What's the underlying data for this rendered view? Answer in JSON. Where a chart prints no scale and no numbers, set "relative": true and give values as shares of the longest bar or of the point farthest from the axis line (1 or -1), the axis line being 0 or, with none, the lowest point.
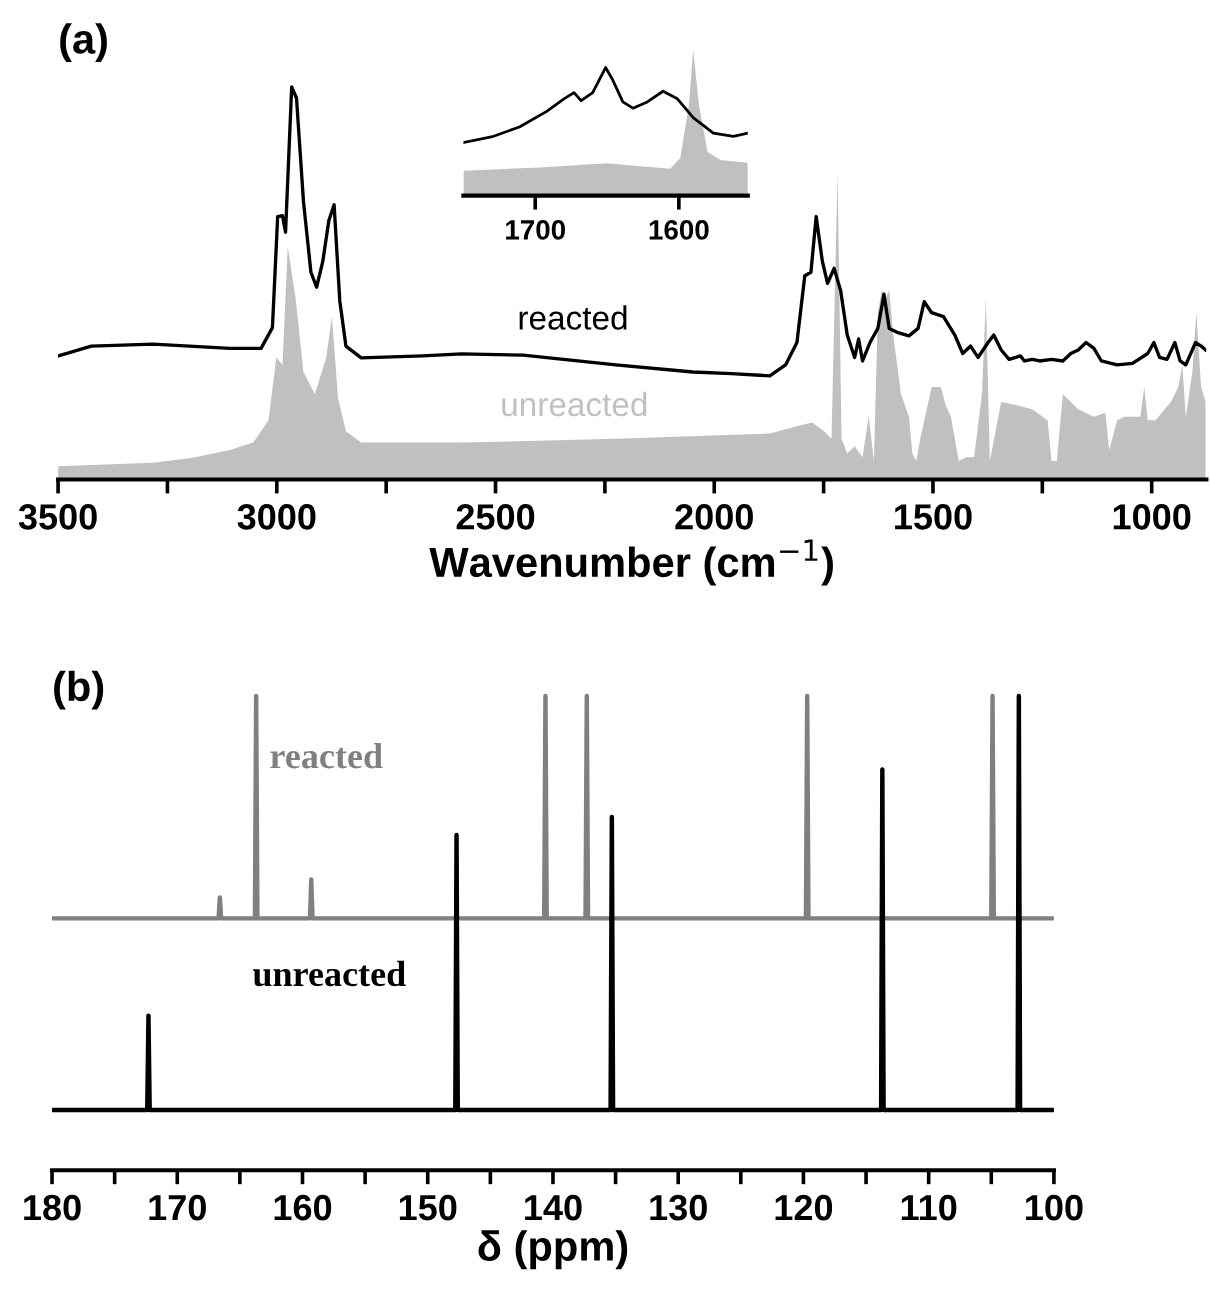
{
  "chart_data": [
    {
      "type": "line",
      "title": "(a)",
      "xlabel": "Wavenumber (cm$^{−1}$)",
      "relative": true,
      "legend": false,
      "grid": false,
      "xlim": [
        3500,
        875
      ],
      "xticks": [
        3500,
        {
          "value": 3250,
          "label": null
        },
        3000,
        {
          "value": 2750,
          "label": null
        },
        2500,
        {
          "value": 2250,
          "label": null
        },
        2000,
        {
          "value": 1750,
          "label": null
        },
        1500,
        {
          "value": 1250,
          "label": null
        },
        1000
      ],
      "series": [
        {
          "name": "reacted",
          "color": "#000000",
          "x": [
            3500,
            3424,
            3283,
            3107,
            3036,
            3010,
            2998,
            2987,
            2980,
            2966,
            2955,
            2939,
            2922,
            2909,
            2895,
            2881,
            2869,
            2856,
            2842,
            2807,
            2666,
            2578,
            2437,
            2225,
            2049,
            1961,
            1873,
            1837,
            1811,
            1793,
            1779,
            1767,
            1753,
            1741,
            1726,
            1711,
            1696,
            1679,
            1670,
            1661,
            1644,
            1626,
            1612,
            1600,
            1582,
            1555,
            1534,
            1520,
            1503,
            1476,
            1450,
            1432,
            1414,
            1397,
            1374,
            1361,
            1344,
            1326,
            1300,
            1291,
            1273,
            1256,
            1229,
            1203,
            1185,
            1168,
            1150,
            1132,
            1115,
            1079,
            1044,
            1009,
            995,
            982,
            965,
            947,
            935,
            922,
            900,
            887,
            877
          ],
          "values": [
            0.315,
            0.34,
            0.345,
            0.334,
            0.334,
            0.387,
            0.67,
            0.672,
            0.63,
            1.0,
            0.972,
            0.708,
            0.528,
            0.49,
            0.555,
            0.66,
            0.7,
            0.455,
            0.34,
            0.31,
            0.315,
            0.32,
            0.317,
            0.292,
            0.274,
            0.27,
            0.264,
            0.292,
            0.349,
            0.519,
            0.528,
            0.67,
            0.557,
            0.5,
            0.538,
            0.481,
            0.368,
            0.311,
            0.358,
            0.302,
            0.349,
            0.385,
            0.472,
            0.385,
            0.375,
            0.366,
            0.385,
            0.453,
            0.425,
            0.415,
            0.368,
            0.321,
            0.34,
            0.311,
            0.349,
            0.368,
            0.33,
            0.306,
            0.315,
            0.302,
            0.306,
            0.302,
            0.306,
            0.302,
            0.321,
            0.33,
            0.349,
            0.334,
            0.302,
            0.292,
            0.296,
            0.321,
            0.349,
            0.311,
            0.306,
            0.349,
            0.302,
            0.292,
            0.349,
            0.34,
            0.33
          ]
        },
        {
          "name": "unreacted",
          "type": "area",
          "color": "#c0c0c0",
          "x": [
            3500,
            3283,
            3195,
            3107,
            3054,
            3019,
            3001,
            2987,
            2975,
            2957,
            2939,
            2913,
            2887,
            2874,
            2860,
            2842,
            2807,
            2578,
            2225,
            1873,
            1802,
            1776,
            1749,
            1732,
            1718,
            1709,
            1696,
            1679,
            1661,
            1647,
            1635,
            1626,
            1617,
            1608,
            1600,
            1591,
            1573,
            1555,
            1547,
            1538,
            1529,
            1503,
            1482,
            1471,
            1459,
            1441,
            1424,
            1406,
            1388,
            1379,
            1370,
            1344,
            1309,
            1273,
            1238,
            1229,
            1217,
            1203,
            1168,
            1132,
            1106,
            1097,
            1079,
            1062,
            1026,
            1017,
            1009,
            991,
            956,
            939,
            930,
            922,
            907,
            898,
            887,
            877
          ],
          "values": [
            0.034,
            0.043,
            0.055,
            0.075,
            0.094,
            0.151,
            0.311,
            0.292,
            0.594,
            0.462,
            0.274,
            0.217,
            0.311,
            0.415,
            0.208,
            0.123,
            0.094,
            0.094,
            0.104,
            0.117,
            0.138,
            0.145,
            0.123,
            0.104,
            0.783,
            0.104,
            0.066,
            0.085,
            0.057,
            0.162,
            0.047,
            0.425,
            0.483,
            0.462,
            0.483,
            0.368,
            0.217,
            0.16,
            0.066,
            0.047,
            0.104,
            0.236,
            0.236,
            0.189,
            0.16,
            0.047,
            0.057,
            0.057,
            0.217,
            0.462,
            0.047,
            0.198,
            0.189,
            0.179,
            0.151,
            0.047,
            0.047,
            0.217,
            0.179,
            0.16,
            0.17,
            0.075,
            0.151,
            0.16,
            0.16,
            0.236,
            0.151,
            0.151,
            0.198,
            0.236,
            0.292,
            0.16,
            0.274,
            0.425,
            0.236,
            0.198
          ]
        }
      ]
    },
    {
      "type": "line",
      "relative": true,
      "legend": false,
      "grid": false,
      "tick_labels": "x",
      "xlim": [
        1750,
        1552
      ],
      "xticks": [
        1700,
        1600
      ],
      "series": [
        {
          "color": "#000000",
          "x": [
            1750,
            1729,
            1711,
            1692,
            1680,
            1673,
            1668,
            1660,
            1651,
            1646,
            1639,
            1632,
            1622,
            1611,
            1601,
            1590,
            1576,
            1562,
            1552
          ],
          "values": [
            0.365,
            0.408,
            0.472,
            0.579,
            0.665,
            0.708,
            0.652,
            0.708,
            0.88,
            0.794,
            0.644,
            0.601,
            0.644,
            0.717,
            0.665,
            0.536,
            0.429,
            0.408,
            0.429
          ]
        },
        {
          "type": "area",
          "color": "#c0c0c0",
          "x": [
            1750,
            1697,
            1650,
            1627,
            1606,
            1599,
            1593,
            1590,
            1586,
            1580,
            1571,
            1552
          ],
          "values": [
            0.172,
            0.193,
            0.223,
            0.202,
            0.185,
            0.258,
            0.622,
            1.0,
            0.622,
            0.3,
            0.245,
            0.227
          ]
        }
      ]
    },
    {
      "type": "line",
      "title": "(b)",
      "xlabel": "δ (ppm)",
      "relative": true,
      "legend": false,
      "grid": false,
      "xlim": [
        180,
        100
      ],
      "xticks": [
        180,
        {
          "value": 175,
          "label": null
        },
        170,
        {
          "value": 165,
          "label": null
        },
        160,
        {
          "value": 155,
          "label": null
        },
        150,
        {
          "value": 145,
          "label": null
        },
        140,
        {
          "value": 135,
          "label": null
        },
        130,
        {
          "value": 125,
          "label": null
        },
        120,
        {
          "value": 115,
          "label": null
        },
        110,
        {
          "value": 105,
          "label": null
        },
        100
      ],
      "series": [
        {
          "name": "reacted",
          "color": "#808080",
          "x": [
            180,
            166.7,
            166.6,
            166.5,
            163.8,
            163.7,
            163.6,
            159.4,
            159.3,
            159.2,
            140.7,
            140.6,
            140.5,
            137.4,
            137.3,
            137.2,
            119.8,
            119.7,
            119.6,
            105.0,
            104.9,
            104.8,
            100
          ],
          "values": [
            0.531,
            0.531,
            0.575,
            0.531,
            0.531,
            1.0,
            0.531,
            0.531,
            0.613,
            0.531,
            0.531,
            1.0,
            0.531,
            0.531,
            1.0,
            0.531,
            0.531,
            1.0,
            0.531,
            0.531,
            1.0,
            0.531,
            0.531
          ]
        },
        {
          "name": "unreacted",
          "color": "#000000",
          "x": [
            180,
            172.4,
            172.3,
            172.2,
            147.8,
            147.7,
            147.6,
            135.4,
            135.3,
            135.2,
            113.8,
            113.7,
            113.6,
            102.9,
            102.8,
            102.7,
            100
          ],
          "values": [
            0.127,
            0.127,
            0.326,
            0.127,
            0.127,
            0.707,
            0.127,
            0.127,
            0.745,
            0.127,
            0.127,
            0.845,
            0.127,
            0.127,
            1.0,
            0.127,
            0.127
          ]
        }
      ]
    }
  ]
}
